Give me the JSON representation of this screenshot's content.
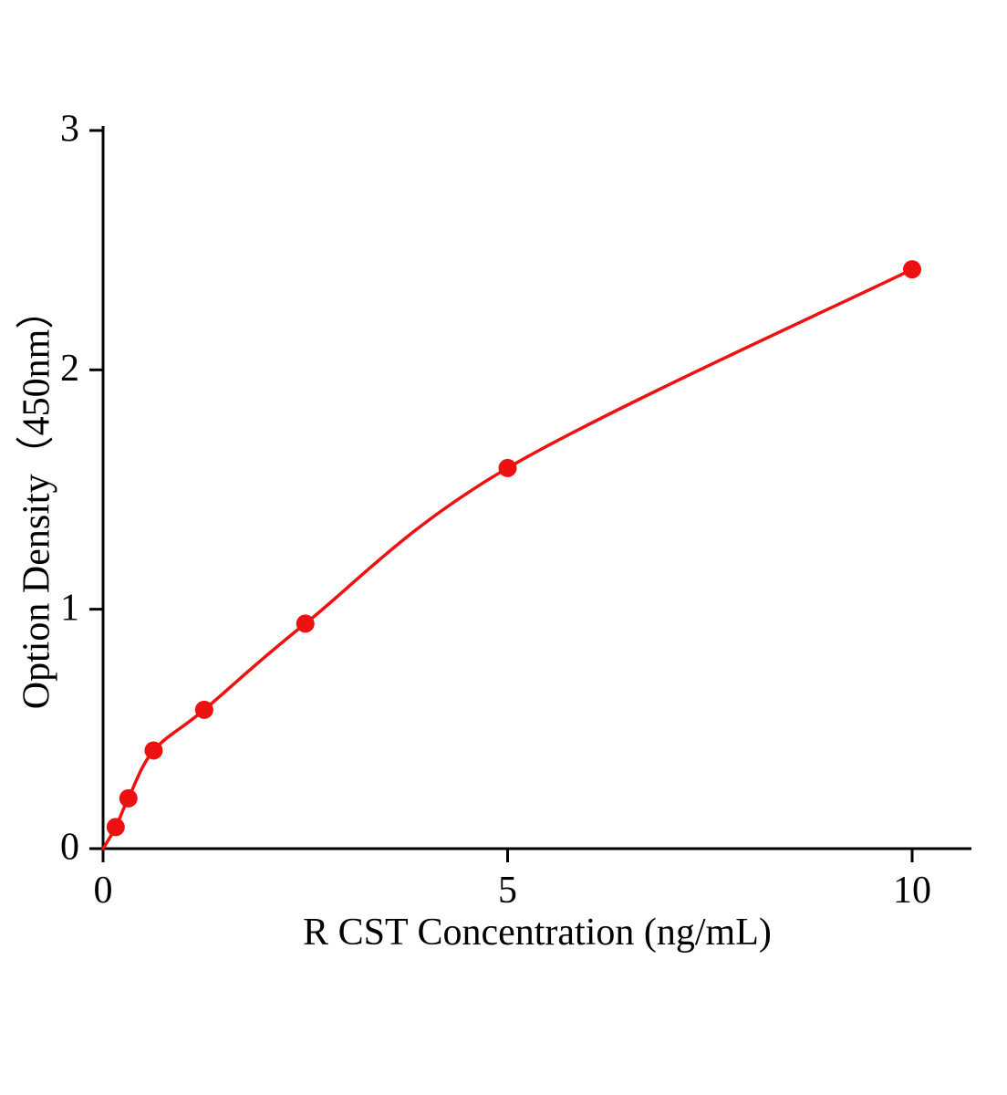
{
  "chart_data": {
    "type": "scatter",
    "title": "",
    "xlabel": "R CST Concentration (ng/mL)",
    "ylabel": "Option Density（450nm）",
    "x": [
      0.156,
      0.313,
      0.625,
      1.25,
      2.5,
      5,
      10
    ],
    "y": [
      0.09,
      0.21,
      0.41,
      0.58,
      0.94,
      1.59,
      2.42
    ],
    "curve_start": {
      "x": 0,
      "y": 0
    },
    "xlim": [
      0,
      10.7
    ],
    "ylim": [
      0,
      3
    ],
    "xticks": [
      0,
      5,
      10
    ],
    "yticks": [
      0,
      1,
      2,
      3
    ],
    "grid": "off",
    "legend": "none",
    "line_color": "#ee1111",
    "marker_color": "#ee1111",
    "axis_color": "#000000"
  }
}
